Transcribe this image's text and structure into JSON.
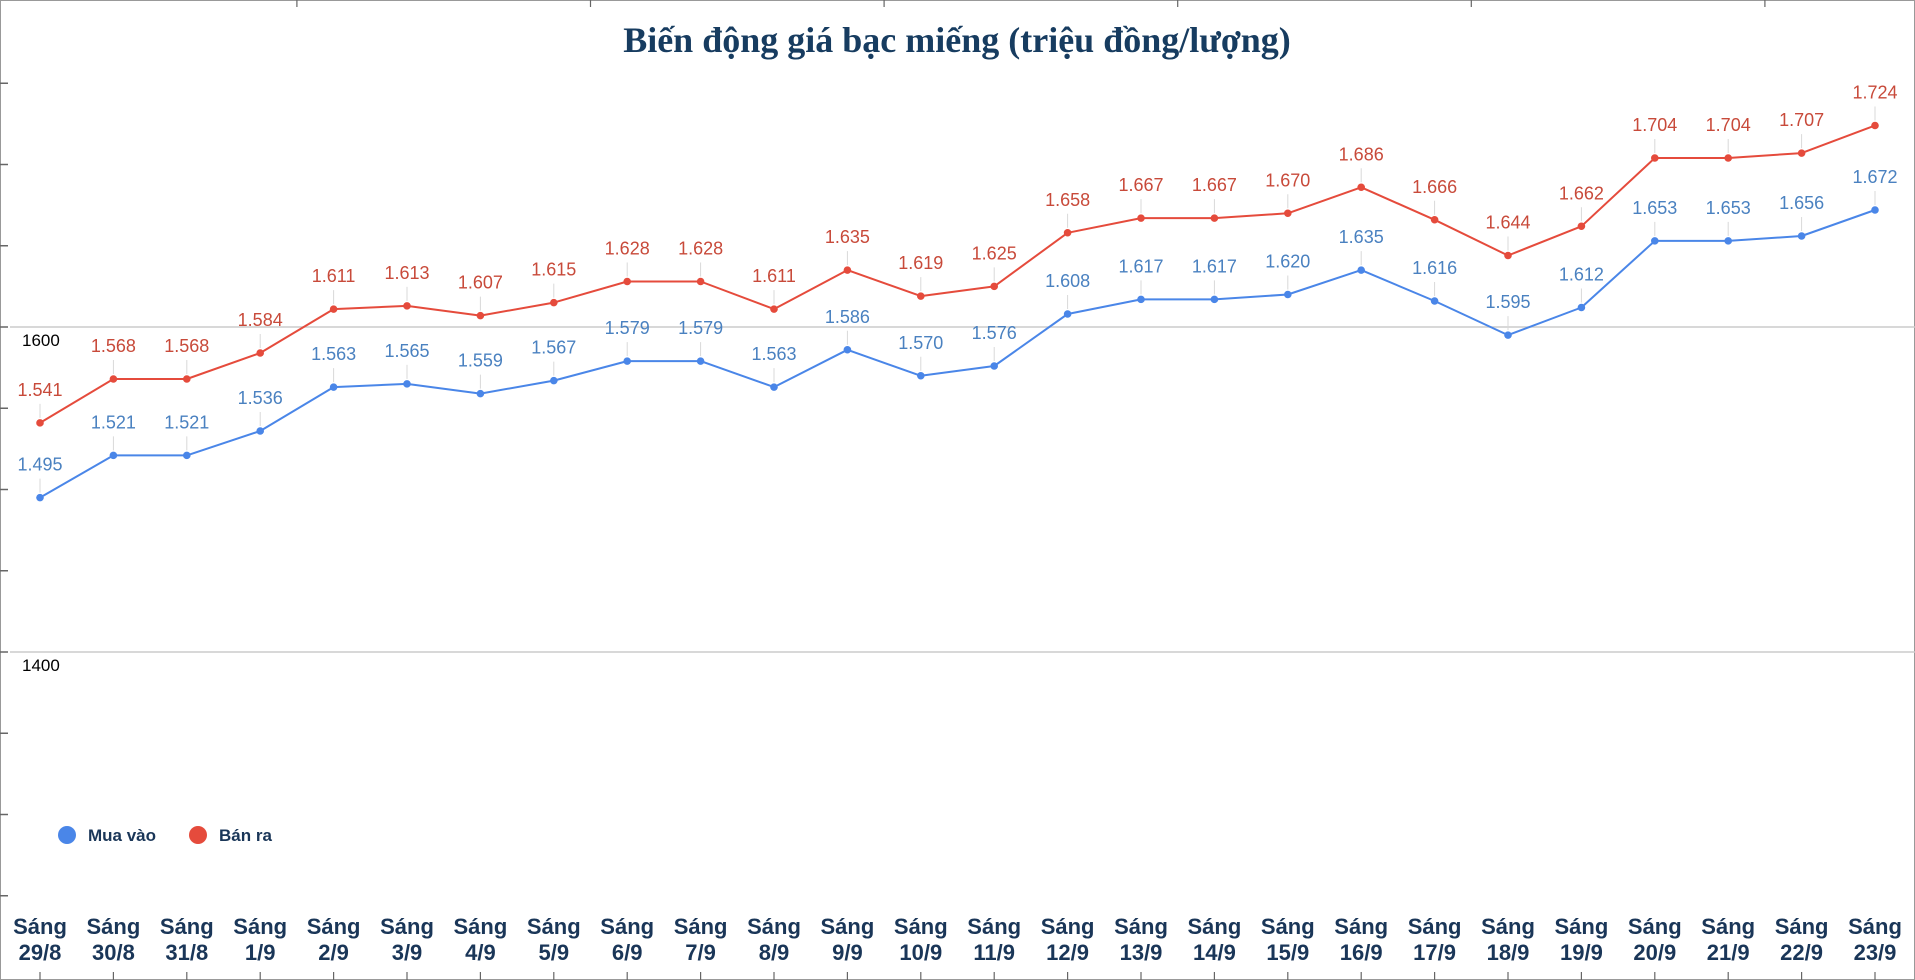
{
  "chart_data": {
    "type": "line",
    "title": "Biến động giá bạc miếng (triệu đồng/lượng)",
    "xlabel": "",
    "ylabel": "",
    "categories": [
      [
        "Sáng",
        "29/8"
      ],
      [
        "Sáng",
        "30/8"
      ],
      [
        "Sáng",
        "31/8"
      ],
      [
        "Sáng",
        "1/9"
      ],
      [
        "Sáng",
        "2/9"
      ],
      [
        "Sáng",
        "3/9"
      ],
      [
        "Sáng",
        "4/9"
      ],
      [
        "Sáng",
        "5/9"
      ],
      [
        "Sáng",
        "6/9"
      ],
      [
        "Sáng",
        "7/9"
      ],
      [
        "Sáng",
        "8/9"
      ],
      [
        "Sáng",
        "9/9"
      ],
      [
        "Sáng",
        "10/9"
      ],
      [
        "Sáng",
        "11/9"
      ],
      [
        "Sáng",
        "12/9"
      ],
      [
        "Sáng",
        "13/9"
      ],
      [
        "Sáng",
        "14/9"
      ],
      [
        "Sáng",
        "15/9"
      ],
      [
        "Sáng",
        "16/9"
      ],
      [
        "Sáng",
        "17/9"
      ],
      [
        "Sáng",
        "18/9"
      ],
      [
        "Sáng",
        "19/9"
      ],
      [
        "Sáng",
        "20/9"
      ],
      [
        "Sáng",
        "21/9"
      ],
      [
        "Sáng",
        "22/9"
      ],
      [
        "Sáng",
        "23/9"
      ]
    ],
    "ylim": [
      1200,
      1800
    ],
    "yticks": [
      1400,
      1600
    ],
    "ytick_labels": [
      "1400",
      "1600"
    ],
    "grid": true,
    "legend_position": "bottom-left",
    "series": [
      {
        "name": "Mua vào",
        "color": "#4a86e8",
        "label_color": "#4a81c0",
        "values": [
          1495,
          1521,
          1521,
          1536,
          1563,
          1565,
          1559,
          1567,
          1579,
          1579,
          1563,
          1586,
          1570,
          1576,
          1608,
          1617,
          1617,
          1620,
          1635,
          1616,
          1595,
          1612,
          1653,
          1653,
          1656,
          1672
        ],
        "labels": [
          "1.495",
          "1.521",
          "1.521",
          "1.536",
          "1.563",
          "1.565",
          "1.559",
          "1.567",
          "1.579",
          "1.579",
          "1.563",
          "1.586",
          "1.570",
          "1.576",
          "1.608",
          "1.617",
          "1.617",
          "1.620",
          "1.635",
          "1.616",
          "1.595",
          "1.612",
          "1.653",
          "1.653",
          "1.656",
          "1.672"
        ]
      },
      {
        "name": "Bán ra",
        "color": "#e54b3c",
        "label_color": "#c84a3a",
        "values": [
          1541,
          1568,
          1568,
          1584,
          1611,
          1613,
          1607,
          1615,
          1628,
          1628,
          1611,
          1635,
          1619,
          1625,
          1658,
          1667,
          1667,
          1670,
          1686,
          1666,
          1644,
          1662,
          1704,
          1704,
          1707,
          1724
        ],
        "labels": [
          "1.541",
          "1.568",
          "1.568",
          "1.584",
          "1.611",
          "1.613",
          "1.607",
          "1.615",
          "1.628",
          "1.628",
          "1.611",
          "1.635",
          "1.619",
          "1.625",
          "1.658",
          "1.667",
          "1.667",
          "1.670",
          "1.686",
          "1.666",
          "1.644",
          "1.662",
          "1.704",
          "1.704",
          "1.707",
          "1.724"
        ]
      }
    ]
  }
}
